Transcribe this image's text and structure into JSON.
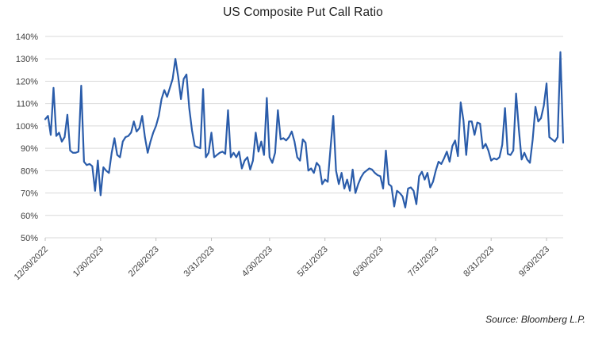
{
  "chart_data": {
    "type": "line",
    "title": "US Composite Put Call Ratio",
    "xlabel": "",
    "ylabel": "",
    "ylim": [
      50,
      140
    ],
    "grid": "horizontal",
    "legend": "none",
    "y_tick_values": [
      50,
      60,
      70,
      80,
      90,
      100,
      110,
      120,
      130,
      140
    ],
    "y_tick_labels": [
      "50%",
      "60%",
      "70%",
      "80%",
      "90%",
      "100%",
      "110%",
      "120%",
      "130%",
      "140%"
    ],
    "x_tick_labels": [
      "12/30/2022",
      "1/30/2023",
      "2/28/2023",
      "3/31/2023",
      "4/30/2023",
      "5/31/2023",
      "6/30/2023",
      "7/31/2023",
      "8/31/2023",
      "9/30/2023"
    ],
    "x_tick_indices": [
      0,
      20,
      40,
      60,
      81,
      101,
      121,
      141,
      161,
      181
    ],
    "series": [
      {
        "name": "US Composite Put Call Ratio",
        "values": [
          103,
          104.5,
          96,
          117,
          95.5,
          97,
          93,
          95,
          105,
          89,
          88,
          88,
          88.5,
          118,
          84,
          82.5,
          83,
          82,
          71,
          84.5,
          69,
          81.5,
          80,
          79,
          88,
          94.5,
          87,
          86,
          93,
          95,
          95.5,
          97,
          102,
          97.5,
          99,
          104.5,
          95,
          88,
          93,
          97,
          100,
          104.5,
          112,
          116,
          113,
          117,
          121,
          130,
          122,
          112,
          121,
          123,
          108,
          98,
          91,
          90.5,
          90,
          116.5,
          86,
          88,
          97,
          86,
          87,
          88,
          88.5,
          87.5,
          107,
          86,
          88,
          86,
          88.5,
          81,
          84.5,
          86,
          80.5,
          84.5,
          97,
          88.5,
          93,
          87,
          112.5,
          86,
          83.5,
          88,
          107,
          94,
          94.5,
          93.5,
          95,
          97.5,
          93,
          86,
          84.5,
          94,
          92.5,
          80,
          81,
          79,
          83.5,
          82,
          74,
          76,
          75,
          90,
          104.5,
          80,
          74,
          79,
          72,
          76,
          71,
          80.5,
          70,
          74,
          77,
          79,
          80,
          81,
          80.5,
          79,
          78,
          77.5,
          72,
          89,
          74,
          73,
          64,
          71,
          70,
          68.5,
          63.5,
          72,
          72.5,
          71,
          65,
          77.5,
          79.5,
          76,
          79,
          72.5,
          75,
          80,
          84,
          83,
          85.5,
          88.5,
          84,
          91,
          93.5,
          86.5,
          110.5,
          102.5,
          87,
          102,
          102,
          96,
          101.5,
          101,
          90,
          92,
          89,
          84.5,
          85.5,
          85,
          86,
          91.5,
          108,
          87.5,
          87,
          89,
          114.5,
          98.5,
          85,
          88,
          85,
          83.5,
          94,
          108.5,
          102,
          103.5,
          109,
          119,
          95,
          94,
          93,
          95,
          133,
          92.5
        ]
      }
    ],
    "line_color": "#2A5CAA",
    "grid_color": "#D9D9D9",
    "tick_color": "#BFBFBF",
    "label_color": "#3F3F3F",
    "title_color": "#1F1F1F"
  },
  "source": {
    "label": "Source: Bloomberg L.P."
  }
}
